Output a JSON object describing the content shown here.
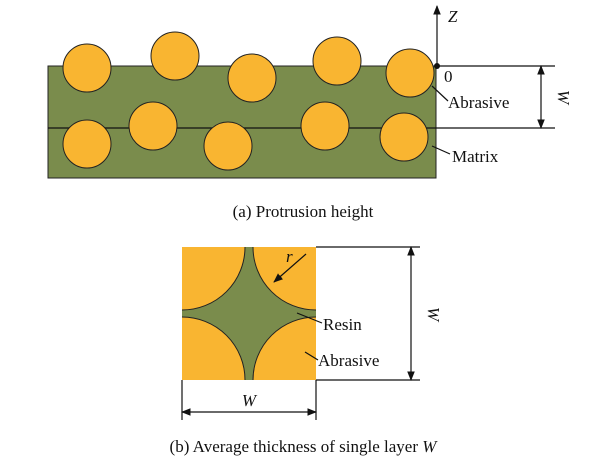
{
  "panel_a": {
    "axis_label": "Z",
    "origin_label": "0",
    "abrasive_label": "Abrasive",
    "matrix_label": "Matrix",
    "dimension_label": "W",
    "caption": "(a) Protrusion height"
  },
  "panel_b": {
    "radius_label": "r",
    "resin_label": "Resin",
    "abrasive_label": "Abrasive",
    "height_label": "W",
    "width_label": "W",
    "caption": {
      "text": "(b) Average thickness of single layer",
      "symbol": "W"
    }
  }
}
